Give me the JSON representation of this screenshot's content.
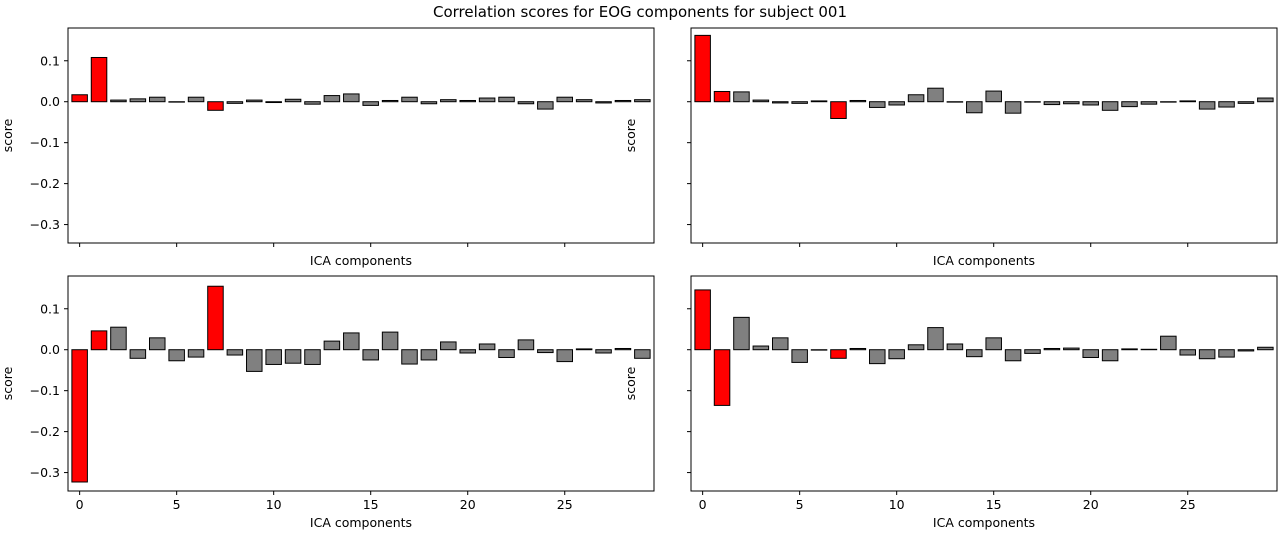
{
  "figure": {
    "title": "Correlation scores for EOG components for subject 001"
  },
  "chart_data": [
    {
      "type": "bar",
      "panel": "top-left",
      "xlabel": "ICA components",
      "ylabel": "score",
      "show_xticklabels": false,
      "show_yticklabels": true,
      "xlim": [
        -0.6,
        29.6
      ],
      "ylim": [
        -0.345,
        0.18
      ],
      "xticks": [
        0,
        5,
        10,
        15,
        20,
        25
      ],
      "yticks": [
        -0.3,
        -0.2,
        -0.1,
        0.0,
        0.1
      ],
      "colors": {
        "selected": "#ff0000",
        "other": "#808080",
        "edge": "#000000"
      },
      "x": [
        0,
        1,
        2,
        3,
        4,
        5,
        6,
        7,
        8,
        9,
        10,
        11,
        12,
        13,
        14,
        15,
        16,
        17,
        18,
        19,
        20,
        21,
        22,
        23,
        24,
        25,
        26,
        27,
        28,
        29
      ],
      "values": [
        0.017,
        0.108,
        0.004,
        0.007,
        0.011,
        -0.001,
        0.011,
        -0.021,
        -0.004,
        0.004,
        -0.002,
        0.006,
        -0.006,
        0.015,
        0.019,
        -0.009,
        0.003,
        0.011,
        -0.005,
        0.005,
        0.003,
        0.009,
        0.011,
        -0.005,
        -0.018,
        0.011,
        0.005,
        -0.003,
        0.003,
        0.005
      ],
      "selected": [
        0,
        1,
        7
      ]
    },
    {
      "type": "bar",
      "panel": "top-right",
      "xlabel": "ICA components",
      "ylabel": "score",
      "show_xticklabels": false,
      "show_yticklabels": false,
      "xlim": [
        -0.6,
        29.6
      ],
      "ylim": [
        -0.345,
        0.18
      ],
      "xticks": [
        0,
        5,
        10,
        15,
        20,
        25
      ],
      "yticks": [
        -0.3,
        -0.2,
        -0.1,
        0.0,
        0.1
      ],
      "colors": {
        "selected": "#ff0000",
        "other": "#808080",
        "edge": "#000000"
      },
      "x": [
        0,
        1,
        2,
        3,
        4,
        5,
        6,
        7,
        8,
        9,
        10,
        11,
        12,
        13,
        14,
        15,
        16,
        17,
        18,
        19,
        20,
        21,
        22,
        23,
        24,
        25,
        26,
        27,
        28,
        29
      ],
      "values": [
        0.162,
        0.025,
        0.024,
        0.004,
        -0.003,
        -0.004,
        0.002,
        -0.041,
        0.003,
        -0.014,
        -0.008,
        0.017,
        0.033,
        -0.001,
        -0.027,
        0.026,
        -0.028,
        -0.001,
        -0.007,
        -0.005,
        -0.008,
        -0.021,
        -0.012,
        -0.006,
        -0.001,
        0.002,
        -0.018,
        -0.013,
        -0.004,
        0.009
      ],
      "selected": [
        0,
        1,
        7
      ]
    },
    {
      "type": "bar",
      "panel": "bottom-left",
      "xlabel": "ICA components",
      "ylabel": "score",
      "show_xticklabels": true,
      "show_yticklabels": true,
      "xlim": [
        -0.6,
        29.6
      ],
      "ylim": [
        -0.345,
        0.18
      ],
      "xticks": [
        0,
        5,
        10,
        15,
        20,
        25
      ],
      "yticks": [
        -0.3,
        -0.2,
        -0.1,
        0.0,
        0.1
      ],
      "colors": {
        "selected": "#ff0000",
        "other": "#808080",
        "edge": "#000000"
      },
      "x": [
        0,
        1,
        2,
        3,
        4,
        5,
        6,
        7,
        8,
        9,
        10,
        11,
        12,
        13,
        14,
        15,
        16,
        17,
        18,
        19,
        20,
        21,
        22,
        23,
        24,
        25,
        26,
        27,
        28,
        29
      ],
      "values": [
        -0.323,
        0.046,
        0.055,
        -0.021,
        0.029,
        -0.027,
        -0.018,
        0.155,
        -0.013,
        -0.053,
        -0.036,
        -0.033,
        -0.036,
        0.021,
        0.041,
        -0.025,
        0.043,
        -0.035,
        -0.025,
        0.019,
        -0.008,
        0.014,
        -0.019,
        0.024,
        -0.007,
        -0.029,
        0.002,
        -0.008,
        0.003,
        -0.021
      ],
      "selected": [
        0,
        1,
        7
      ]
    },
    {
      "type": "bar",
      "panel": "bottom-right",
      "xlabel": "ICA components",
      "ylabel": "score",
      "show_xticklabels": true,
      "show_yticklabels": false,
      "xlim": [
        -0.6,
        29.6
      ],
      "ylim": [
        -0.345,
        0.18
      ],
      "xticks": [
        0,
        5,
        10,
        15,
        20,
        25
      ],
      "yticks": [
        -0.3,
        -0.2,
        -0.1,
        0.0,
        0.1
      ],
      "colors": {
        "selected": "#ff0000",
        "other": "#808080",
        "edge": "#000000"
      },
      "x": [
        0,
        1,
        2,
        3,
        4,
        5,
        6,
        7,
        8,
        9,
        10,
        11,
        12,
        13,
        14,
        15,
        16,
        17,
        18,
        19,
        20,
        21,
        22,
        23,
        24,
        25,
        26,
        27,
        28,
        29
      ],
      "values": [
        0.146,
        -0.136,
        0.079,
        0.009,
        0.029,
        -0.031,
        -0.001,
        -0.021,
        0.003,
        -0.034,
        -0.022,
        0.012,
        0.054,
        0.014,
        -0.017,
        0.029,
        -0.027,
        -0.009,
        0.003,
        0.004,
        -0.019,
        -0.027,
        0.002,
        0.001,
        0.033,
        -0.013,
        -0.022,
        -0.018,
        -0.003,
        0.006
      ],
      "selected": [
        0,
        1,
        7
      ]
    }
  ]
}
